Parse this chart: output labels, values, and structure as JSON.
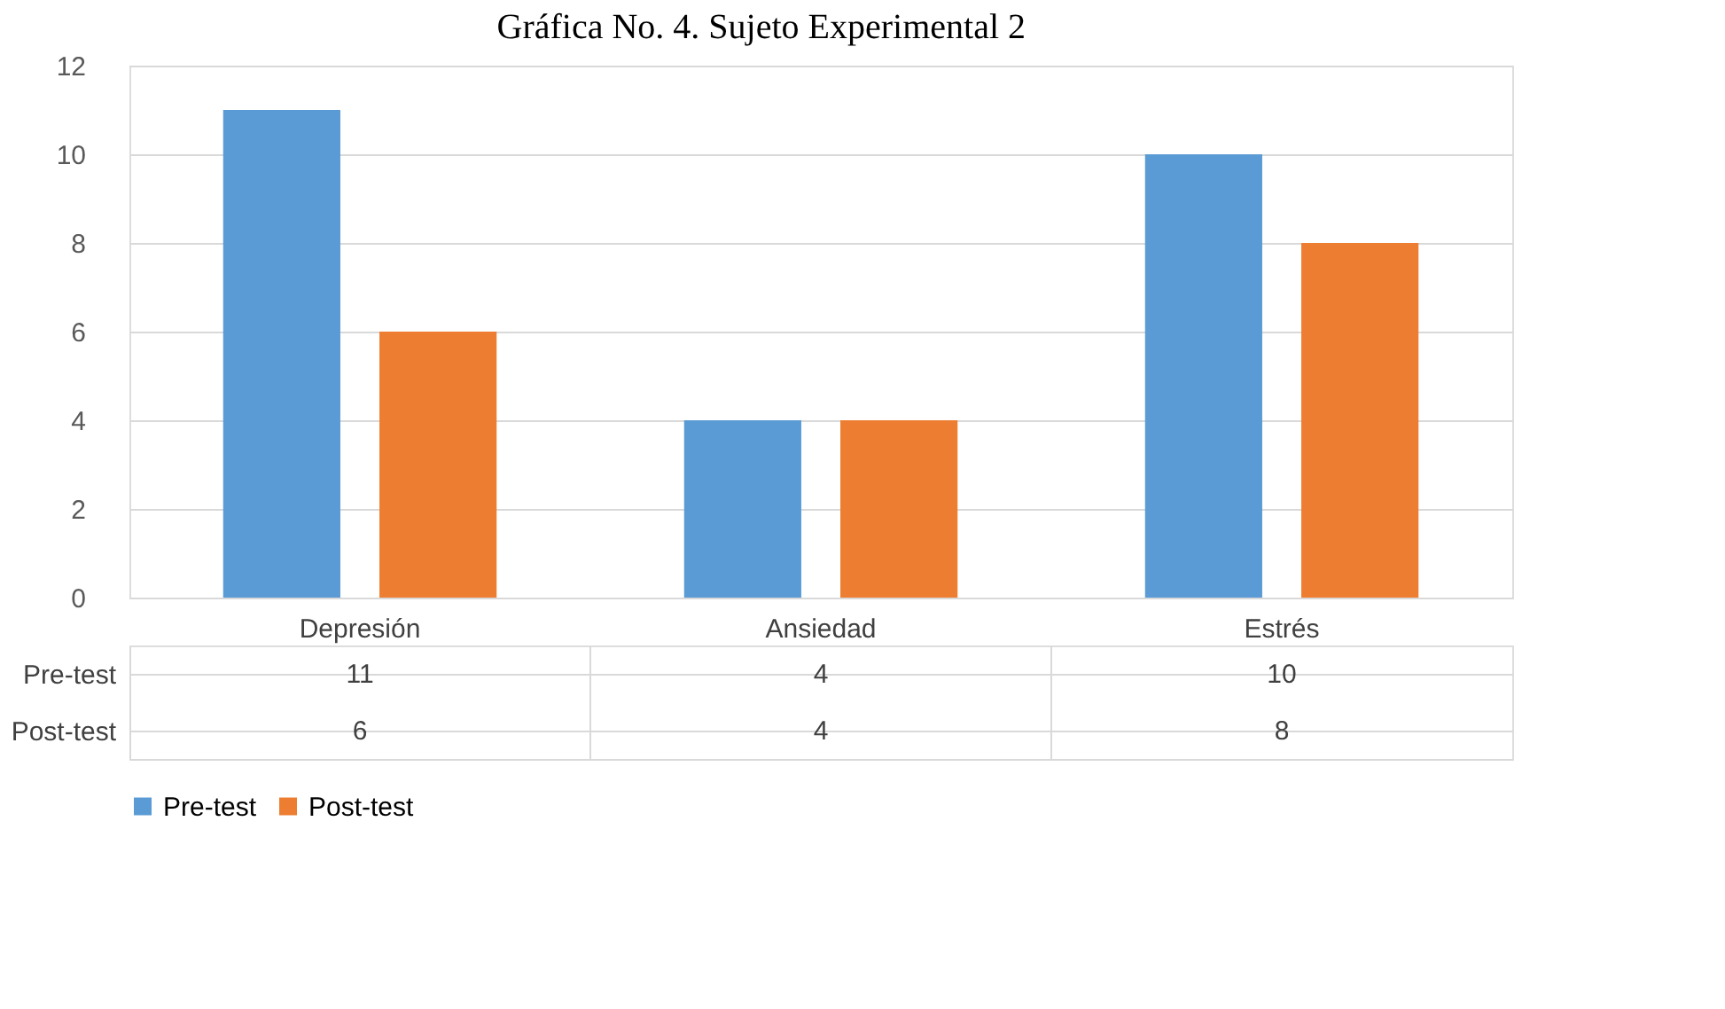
{
  "chart_data": {
    "type": "bar",
    "title": "Gráfica No. 4. Sujeto Experimental 2",
    "categories": [
      "Depresión",
      "Ansiedad",
      "Estrés"
    ],
    "series": [
      {
        "name": "Pre-test",
        "color": "#5b9bd5",
        "values": [
          11,
          4,
          10
        ]
      },
      {
        "name": "Post-test",
        "color": "#ed7d31",
        "values": [
          6,
          4,
          8
        ]
      }
    ],
    "ylim": [
      0,
      12
    ],
    "yticks": [
      0,
      2,
      4,
      6,
      8,
      10,
      12
    ],
    "grid": "y",
    "legend": "bottom",
    "data_labels": true
  }
}
